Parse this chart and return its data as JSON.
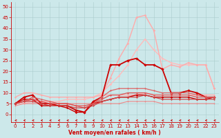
{
  "xlabel": "Vent moyen/en rafales ( km/h )",
  "bg_color": "#cce8ea",
  "grid_color": "#aacccc",
  "x_ticks": [
    0,
    1,
    2,
    3,
    4,
    5,
    6,
    7,
    8,
    9,
    10,
    11,
    12,
    13,
    14,
    15,
    16,
    17,
    18,
    19,
    20,
    21,
    22,
    23
  ],
  "y_ticks": [
    0,
    5,
    10,
    15,
    20,
    25,
    30,
    35,
    40,
    45,
    50
  ],
  "ylim": [
    -3.5,
    52
  ],
  "xlim": [
    -0.5,
    23.5
  ],
  "series": [
    {
      "x": [
        0,
        1,
        2,
        3,
        4,
        5,
        6,
        7,
        8,
        9,
        10,
        11,
        12,
        13,
        14,
        15,
        16,
        17,
        18,
        19,
        20,
        21,
        22,
        23
      ],
      "y": [
        5,
        5,
        6,
        6,
        6,
        6,
        7,
        7,
        7,
        8,
        10,
        14,
        18,
        23,
        30,
        35,
        30,
        26,
        24,
        23,
        23,
        23,
        23,
        12
      ],
      "color": "#ffbbbb",
      "lw": 1.0,
      "marker": "D",
      "ms": 1.8
    },
    {
      "x": [
        0,
        1,
        2,
        3,
        4,
        5,
        6,
        7,
        8,
        9,
        10,
        11,
        12,
        13,
        14,
        15,
        16,
        17,
        18,
        19,
        20,
        21,
        22,
        23
      ],
      "y": [
        5,
        6,
        7,
        6,
        6,
        5,
        5,
        4,
        3,
        5,
        9,
        17,
        26,
        33,
        45,
        46,
        39,
        21,
        23,
        22,
        24,
        23,
        23,
        12
      ],
      "color": "#ffaaaa",
      "lw": 1.0,
      "marker": "D",
      "ms": 1.8
    },
    {
      "x": [
        0,
        1,
        2,
        3,
        4,
        5,
        6,
        7,
        8,
        9,
        10,
        11,
        12,
        13,
        14,
        15,
        16,
        17,
        18,
        19,
        20,
        21,
        22,
        23
      ],
      "y": [
        8,
        10,
        10,
        9,
        8,
        8,
        8,
        8,
        8,
        8,
        9,
        9,
        9,
        9,
        9,
        10,
        9,
        9,
        9,
        9,
        9,
        9,
        9,
        9
      ],
      "color": "#ffaaaa",
      "lw": 1.0,
      "marker": "D",
      "ms": 1.5
    },
    {
      "x": [
        0,
        1,
        2,
        3,
        4,
        5,
        6,
        7,
        8,
        9,
        10,
        11,
        12,
        13,
        14,
        15,
        16,
        17,
        18,
        19,
        20,
        21,
        22,
        23
      ],
      "y": [
        4,
        5,
        5,
        5,
        5,
        5,
        5,
        5,
        5,
        5,
        5,
        5,
        5,
        6,
        6,
        6,
        6,
        5,
        5,
        5,
        5,
        5,
        5,
        5
      ],
      "color": "#ee8888",
      "lw": 0.8,
      "marker": "D",
      "ms": 1.2
    },
    {
      "x": [
        0,
        1,
        2,
        3,
        4,
        5,
        6,
        7,
        8,
        9,
        10,
        11,
        12,
        13,
        14,
        15,
        16,
        17,
        18,
        19,
        20,
        21,
        22,
        23
      ],
      "y": [
        5,
        8,
        9,
        5,
        5,
        4,
        4,
        2,
        1,
        6,
        8,
        23,
        23,
        25,
        26,
        23,
        23,
        21,
        10,
        10,
        11,
        10,
        8,
        8
      ],
      "color": "#cc0000",
      "lw": 1.3,
      "marker": "D",
      "ms": 2.2
    },
    {
      "x": [
        0,
        1,
        2,
        3,
        4,
        5,
        6,
        7,
        8,
        9,
        10,
        11,
        12,
        13,
        14,
        15,
        16,
        17,
        18,
        19,
        20,
        21,
        22,
        23
      ],
      "y": [
        5,
        7,
        7,
        4,
        4,
        4,
        3,
        1,
        1,
        5,
        6,
        7,
        8,
        8,
        9,
        9,
        8,
        8,
        8,
        8,
        8,
        7,
        7,
        8
      ],
      "color": "#cc0000",
      "lw": 1.0,
      "marker": "D",
      "ms": 1.8
    },
    {
      "x": [
        0,
        1,
        2,
        3,
        4,
        5,
        6,
        7,
        8,
        9,
        10,
        11,
        12,
        13,
        14,
        15,
        16,
        17,
        18,
        19,
        20,
        21,
        22,
        23
      ],
      "y": [
        5,
        6,
        8,
        7,
        6,
        5,
        5,
        4,
        3,
        5,
        8,
        11,
        12,
        12,
        12,
        12,
        11,
        10,
        10,
        10,
        10,
        9,
        8,
        8
      ],
      "color": "#dd6666",
      "lw": 0.9,
      "marker": "D",
      "ms": 1.5
    },
    {
      "x": [
        0,
        1,
        2,
        3,
        4,
        5,
        6,
        7,
        8,
        9,
        10,
        11,
        12,
        13,
        14,
        15,
        16,
        17,
        18,
        19,
        20,
        21,
        22,
        23
      ],
      "y": [
        5,
        6,
        7,
        6,
        5,
        5,
        5,
        4,
        4,
        5,
        7,
        9,
        9,
        10,
        10,
        10,
        9,
        9,
        9,
        9,
        9,
        8,
        8,
        8
      ],
      "color": "#dd5555",
      "lw": 0.9,
      "marker": "D",
      "ms": 1.5
    },
    {
      "x": [
        0,
        1,
        2,
        3,
        4,
        5,
        6,
        7,
        8,
        9,
        10,
        11,
        12,
        13,
        14,
        15,
        16,
        17,
        18,
        19,
        20,
        21,
        22,
        23
      ],
      "y": [
        5,
        6,
        6,
        5,
        4,
        4,
        4,
        3,
        3,
        4,
        6,
        7,
        8,
        8,
        8,
        9,
        8,
        7,
        7,
        7,
        7,
        7,
        7,
        7
      ],
      "color": "#cc4444",
      "lw": 0.9,
      "marker": "D",
      "ms": 1.5
    }
  ],
  "axis_label_color": "#cc0000",
  "tick_color": "#cc0000",
  "tick_fontsize": 5,
  "xlabel_fontsize": 5.5
}
